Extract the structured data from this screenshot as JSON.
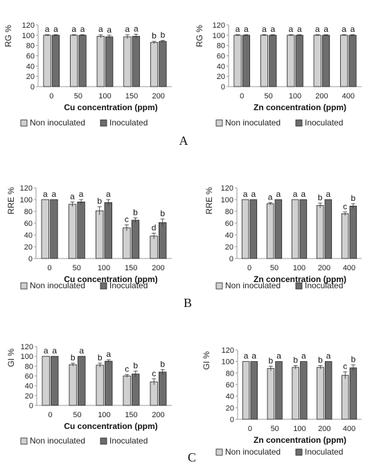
{
  "figure": {
    "panel_labels": [
      "A",
      "B",
      "C"
    ]
  },
  "colors": {
    "non_inoculated": "#d0d0d0",
    "inoculated": "#6d6d6d",
    "outline": "#222222",
    "axis": "#999999",
    "grid": "#dddddd"
  },
  "chart_data": [
    {
      "type": "bar",
      "panel": "A",
      "ylabel": "RG %",
      "xlabel": "Cu concentration (ppm)",
      "categories": [
        "0",
        "50",
        "100",
        "150",
        "200"
      ],
      "ylim": [
        0,
        120
      ],
      "yticks": [
        0,
        20,
        40,
        60,
        80,
        100,
        120
      ],
      "grid": false,
      "legend_position": "bottom",
      "series": [
        {
          "name": "Non inoculated",
          "values": [
            100,
            100,
            98,
            97,
            86
          ],
          "errors": [
            1,
            1,
            3,
            4,
            2
          ],
          "letters": [
            "a",
            "a",
            "a",
            "a",
            "b"
          ]
        },
        {
          "name": "Inoculated",
          "values": [
            100,
            100,
            97,
            98,
            88
          ],
          "errors": [
            1,
            1,
            3,
            4,
            2
          ],
          "letters": [
            "a",
            "a",
            "a",
            "a",
            "b"
          ]
        }
      ]
    },
    {
      "type": "bar",
      "panel": "A",
      "ylabel": "RG %",
      "xlabel": "Zn concentration (ppm)",
      "categories": [
        "0",
        "50",
        "100",
        "200",
        "400"
      ],
      "ylim": [
        0,
        120
      ],
      "yticks": [
        0,
        20,
        40,
        60,
        80,
        100,
        120
      ],
      "grid": false,
      "legend_position": "bottom",
      "series": [
        {
          "name": "Non inoculated",
          "values": [
            100,
            100,
            100,
            100,
            100
          ],
          "errors": [
            1,
            1,
            1,
            1,
            1
          ],
          "letters": [
            "a",
            "a",
            "a",
            "a",
            "a"
          ]
        },
        {
          "name": "Inoculated",
          "values": [
            100,
            100,
            100,
            100,
            100
          ],
          "errors": [
            1,
            1,
            1,
            1,
            1
          ],
          "letters": [
            "a",
            "a",
            "a",
            "a",
            "a"
          ]
        }
      ]
    },
    {
      "type": "bar",
      "panel": "B",
      "ylabel": "RRE %",
      "xlabel": "Cu concentration (ppm)",
      "categories": [
        "0",
        "50",
        "100",
        "150",
        "200"
      ],
      "ylim": [
        0,
        120
      ],
      "yticks": [
        0,
        20,
        40,
        60,
        80,
        100,
        120
      ],
      "grid": false,
      "legend_position": "bottom",
      "series": [
        {
          "name": "Non inoculated",
          "values": [
            100,
            92,
            81,
            52,
            38
          ],
          "errors": [
            0,
            4,
            7,
            5,
            5
          ],
          "letters": [
            "a",
            "a",
            "b",
            "c",
            "d"
          ]
        },
        {
          "name": "Inoculated",
          "values": [
            100,
            96,
            95,
            65,
            61
          ],
          "errors": [
            0,
            4,
            5,
            4,
            6
          ],
          "letters": [
            "a",
            "a",
            "a",
            "b",
            "b"
          ]
        }
      ]
    },
    {
      "type": "bar",
      "panel": "B",
      "ylabel": "RRE %",
      "xlabel": "Zn concentration (ppm)",
      "categories": [
        "0",
        "50",
        "100",
        "200",
        "400"
      ],
      "ylim": [
        0,
        120
      ],
      "yticks": [
        0,
        20,
        40,
        60,
        80,
        100,
        120
      ],
      "grid": false,
      "legend_position": "bottom",
      "series": [
        {
          "name": "Non inoculated",
          "values": [
            100,
            93,
            100,
            90,
            76
          ],
          "errors": [
            0,
            2,
            0,
            4,
            3
          ],
          "letters": [
            "a",
            "a",
            "a",
            "b",
            "c"
          ]
        },
        {
          "name": "Inoculated",
          "values": [
            100,
            100,
            100,
            100,
            89
          ],
          "errors": [
            0,
            0,
            0,
            0,
            4
          ],
          "letters": [
            "a",
            "a",
            "a",
            "a",
            "b"
          ]
        }
      ]
    },
    {
      "type": "bar",
      "panel": "C",
      "ylabel": "GI %",
      "xlabel": "Cu concentration (ppm)",
      "categories": [
        "0",
        "50",
        "100",
        "150",
        "200"
      ],
      "ylim": [
        0,
        120
      ],
      "yticks": [
        0,
        20,
        40,
        60,
        80,
        100,
        120
      ],
      "grid": false,
      "legend_position": "bottom",
      "series": [
        {
          "name": "Non inoculated",
          "values": [
            100,
            83,
            82,
            60,
            48
          ],
          "errors": [
            0,
            3,
            4,
            3,
            6
          ],
          "letters": [
            "a",
            "b",
            "b",
            "c",
            "c"
          ]
        },
        {
          "name": "Inoculated",
          "values": [
            100,
            100,
            90,
            64,
            68
          ],
          "errors": [
            0,
            0,
            3,
            6,
            5
          ],
          "letters": [
            "a",
            "a",
            "a",
            "b",
            "b"
          ]
        }
      ]
    },
    {
      "type": "bar",
      "panel": "C",
      "ylabel": "GI %",
      "xlabel": "Zn concentration (ppm)",
      "categories": [
        "0",
        "50",
        "100",
        "200",
        "400"
      ],
      "ylim": [
        0,
        120
      ],
      "yticks": [
        0,
        20,
        40,
        60,
        80,
        100,
        120
      ],
      "grid": false,
      "legend_position": "bottom",
      "series": [
        {
          "name": "Non inoculated",
          "values": [
            100,
            88,
            90,
            90,
            76
          ],
          "errors": [
            0,
            4,
            3,
            3,
            6
          ],
          "letters": [
            "a",
            "b",
            "b",
            "b",
            "c"
          ]
        },
        {
          "name": "Inoculated",
          "values": [
            100,
            100,
            100,
            100,
            89
          ],
          "errors": [
            0,
            0,
            0,
            0,
            5
          ],
          "letters": [
            "a",
            "a",
            "a",
            "a",
            "b"
          ]
        }
      ]
    }
  ]
}
